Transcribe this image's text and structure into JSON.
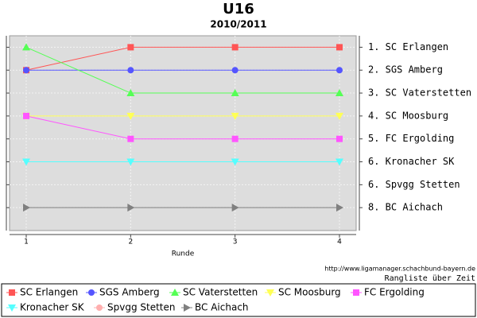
{
  "chart_data": {
    "type": "line",
    "title": "U16",
    "subtitle": "2010/2011",
    "x_label": "Runde",
    "source": "http://www.ligamanager.schachbund-bayern.de",
    "note": "Rangliste über Zeit",
    "x": [
      1,
      2,
      3,
      4
    ],
    "xlim": [
      0.84,
      4.16
    ],
    "xticks": [
      1,
      2,
      3,
      4
    ],
    "ylim": [
      0.5,
      9.0
    ],
    "y_inverted": true,
    "yticks": [
      1,
      2,
      3,
      4,
      5,
      6,
      7,
      8
    ],
    "grid": true,
    "y2lim": [
      0.5,
      9.0
    ],
    "y2ticks": [
      {
        "value": 1,
        "label": "1. SC Erlangen"
      },
      {
        "value": 2,
        "label": "2. SGS Amberg"
      },
      {
        "value": 3,
        "label": "3. SC Vaterstetten"
      },
      {
        "value": 4,
        "label": "4. SC Moosburg"
      },
      {
        "value": 5,
        "label": "5. FC Ergolding"
      },
      {
        "value": 6,
        "label": "6. Kronacher SK"
      },
      {
        "value": 7,
        "label": "6. Spvgg Stetten"
      },
      {
        "value": 8,
        "label": "8. BC Aichach"
      }
    ],
    "legend": "bottom",
    "series": [
      {
        "name": "SC Erlangen",
        "color": "#ff5555",
        "marker": "square",
        "values": [
          2,
          1,
          1,
          1
        ]
      },
      {
        "name": "SGS Amberg",
        "color": "#5555ff",
        "marker": "circle",
        "values": [
          2,
          2,
          2,
          2
        ]
      },
      {
        "name": "SC Vaterstetten",
        "color": "#55ff55",
        "marker": "triangle-up",
        "values": [
          1,
          3,
          3,
          3
        ]
      },
      {
        "name": "SC Moosburg",
        "color": "#ffff55",
        "marker": "triangle-down",
        "values": [
          4,
          4,
          4,
          4
        ]
      },
      {
        "name": "FC Ergolding",
        "color": "#ff55ff",
        "marker": "square",
        "values": [
          4,
          5,
          5,
          5
        ]
      },
      {
        "name": "Kronacher SK",
        "color": "#55ffff",
        "marker": "triangle-down",
        "values": [
          6,
          6,
          6,
          6
        ]
      },
      {
        "name": "Spvgg Stetten",
        "color": "#ffafaf",
        "marker": "circle",
        "values": [
          null,
          null,
          null,
          null
        ]
      },
      {
        "name": "BC Aichach",
        "color": "#808080",
        "marker": "triangle-right",
        "values": [
          8,
          8,
          8,
          8
        ]
      }
    ]
  }
}
